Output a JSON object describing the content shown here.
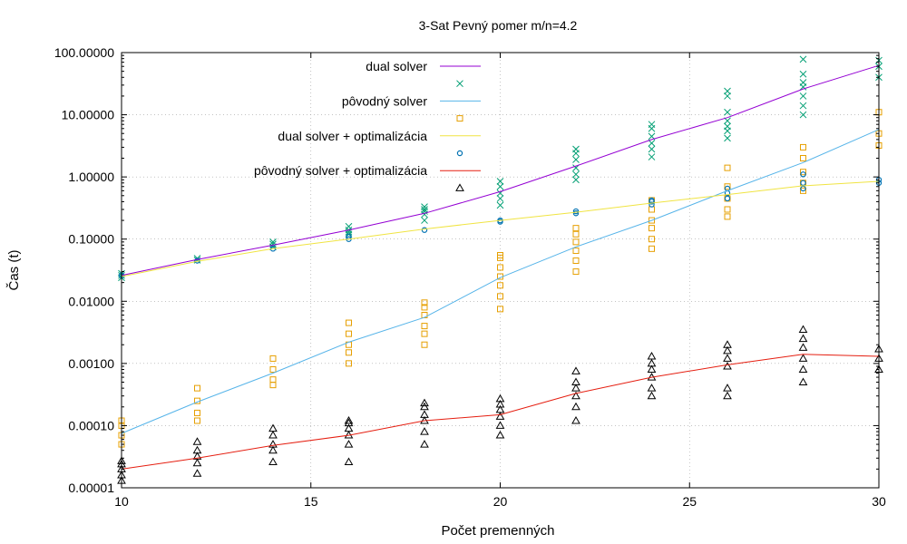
{
  "chart_data": {
    "type": "line",
    "title": "3-Sat Pevný pomer m/n=4.2",
    "xlabel": "Počet premenných",
    "ylabel": "Čas (t)",
    "xlim": [
      10,
      30
    ],
    "ylim": [
      1e-05,
      100
    ],
    "yscale": "log",
    "legend_placement": "top-left",
    "x_ticks": [
      {
        "value": 10,
        "label": "10"
      },
      {
        "value": 15,
        "label": "15"
      },
      {
        "value": 20,
        "label": "20"
      },
      {
        "value": 25,
        "label": "25"
      },
      {
        "value": 30,
        "label": "30"
      }
    ],
    "y_ticks": [
      {
        "value": 1e-05,
        "label": "0.00001"
      },
      {
        "value": 0.0001,
        "label": "0.00010"
      },
      {
        "value": 0.001,
        "label": "0.00100"
      },
      {
        "value": 0.01,
        "label": "0.01000"
      },
      {
        "value": 0.1,
        "label": "0.10000"
      },
      {
        "value": 1,
        "label": "1.00000"
      },
      {
        "value": 10,
        "label": "10.00000"
      },
      {
        "value": 100,
        "label": "100.00000"
      }
    ],
    "legend": [
      {
        "label": "dual solver",
        "kind": "line",
        "color": "#9400d3"
      },
      {
        "label": "",
        "kind": "cross",
        "color": "#009e73"
      },
      {
        "label": "pôvodný solver",
        "kind": "line",
        "color": "#56b4e9"
      },
      {
        "label": "",
        "kind": "square",
        "color": "#e69f00"
      },
      {
        "label": "dual solver + optimalizácia",
        "kind": "line",
        "color": "#f0e442"
      },
      {
        "label": "",
        "kind": "circle",
        "color": "#0072b2"
      },
      {
        "label": "pôvodný solver + optimalizácia",
        "kind": "line",
        "color": "#e51e10"
      },
      {
        "label": "",
        "kind": "triangle",
        "color": "#000000"
      }
    ],
    "series": [
      {
        "name": "dual solver",
        "kind": "line",
        "color": "#9400d3",
        "x": [
          10,
          12,
          14,
          16,
          18,
          20,
          22,
          24,
          26,
          28,
          30
        ],
        "y": [
          0.026,
          0.047,
          0.08,
          0.14,
          0.26,
          0.58,
          1.5,
          4.0,
          9.0,
          26,
          62
        ]
      },
      {
        "name": "pôvodný solver",
        "kind": "line",
        "color": "#56b4e9",
        "x": [
          10,
          12,
          14,
          16,
          18,
          20,
          22,
          24,
          26,
          28,
          30
        ],
        "y": [
          7.5e-05,
          0.00024,
          0.0007,
          0.0022,
          0.0055,
          0.024,
          0.075,
          0.2,
          0.6,
          1.7,
          5.8
        ]
      },
      {
        "name": "dual solver + optimalizácia",
        "kind": "line",
        "color": "#f0e442",
        "x": [
          10,
          12,
          14,
          16,
          18,
          20,
          22,
          24,
          26,
          28,
          30
        ],
        "y": [
          0.025,
          0.044,
          0.07,
          0.1,
          0.145,
          0.2,
          0.27,
          0.38,
          0.52,
          0.72,
          0.85
        ]
      },
      {
        "name": "pôvodný solver + optimalizácia",
        "kind": "line",
        "color": "#e51e10",
        "x": [
          10,
          12,
          14,
          16,
          18,
          20,
          22,
          24,
          26,
          28,
          30
        ],
        "y": [
          2e-05,
          3e-05,
          4.8e-05,
          7e-05,
          0.00012,
          0.00015,
          0.00033,
          0.0006,
          0.00095,
          0.0014,
          0.0013
        ]
      },
      {
        "kind": "cross",
        "color": "#009e73",
        "x": [
          10,
          10,
          10,
          12,
          12,
          14,
          14,
          14,
          16,
          16,
          16,
          16,
          18,
          18,
          18,
          18,
          18,
          20,
          20,
          20,
          20,
          20,
          22,
          22,
          22,
          22,
          22,
          22,
          24,
          24,
          24,
          24,
          24,
          24,
          26,
          26,
          26,
          26,
          26,
          26,
          26,
          28,
          28,
          28,
          28,
          28,
          28,
          28,
          30,
          30,
          30
        ],
        "y": [
          0.024,
          0.026,
          0.028,
          0.046,
          0.049,
          0.075,
          0.083,
          0.09,
          0.12,
          0.13,
          0.14,
          0.16,
          0.2,
          0.25,
          0.28,
          0.3,
          0.33,
          0.35,
          0.45,
          0.55,
          0.7,
          0.85,
          0.9,
          1.1,
          1.4,
          1.9,
          2.4,
          2.8,
          2.1,
          2.8,
          3.5,
          4.5,
          6.0,
          7.0,
          4.2,
          5.5,
          6.5,
          8.0,
          11,
          20,
          24,
          10,
          14,
          20,
          28,
          33,
          45,
          78,
          40,
          60,
          75
        ]
      },
      {
        "kind": "square",
        "color": "#e69f00",
        "x": [
          10,
          10,
          10,
          10,
          12,
          12,
          12,
          12,
          14,
          14,
          14,
          14,
          16,
          16,
          16,
          16,
          16,
          18,
          18,
          18,
          18,
          18,
          18,
          20,
          20,
          20,
          20,
          20,
          20,
          20,
          22,
          22,
          22,
          22,
          22,
          22,
          24,
          24,
          24,
          24,
          24,
          24,
          26,
          26,
          26,
          26,
          26,
          28,
          28,
          28,
          28,
          28,
          30,
          30,
          30
        ],
        "y": [
          5e-05,
          7e-05,
          0.0001,
          0.00012,
          0.00012,
          0.00016,
          0.00025,
          0.0004,
          0.00045,
          0.00055,
          0.0008,
          0.0012,
          0.001,
          0.0015,
          0.002,
          0.003,
          0.0045,
          0.002,
          0.003,
          0.004,
          0.006,
          0.008,
          0.0095,
          0.0075,
          0.012,
          0.018,
          0.025,
          0.035,
          0.05,
          0.055,
          0.03,
          0.045,
          0.065,
          0.09,
          0.12,
          0.15,
          0.07,
          0.1,
          0.15,
          0.2,
          0.3,
          0.42,
          0.23,
          0.3,
          0.45,
          0.7,
          1.4,
          0.6,
          0.8,
          1.2,
          2.0,
          3.0,
          3.2,
          5.0,
          11
        ]
      },
      {
        "kind": "circle",
        "color": "#0072b2",
        "x": [
          10,
          12,
          14,
          16,
          16,
          18,
          20,
          20,
          22,
          22,
          24,
          24,
          24,
          26,
          26,
          26,
          28,
          28,
          28,
          30,
          30
        ],
        "y": [
          0.026,
          0.045,
          0.07,
          0.1,
          0.11,
          0.14,
          0.19,
          0.2,
          0.26,
          0.28,
          0.36,
          0.4,
          0.42,
          0.45,
          0.55,
          0.65,
          0.65,
          0.8,
          1.1,
          0.8,
          0.9
        ]
      },
      {
        "kind": "triangle",
        "color": "#000000",
        "x": [
          10,
          10,
          10,
          10,
          10,
          12,
          12,
          12,
          12,
          12,
          14,
          14,
          14,
          14,
          14,
          16,
          16,
          16,
          16,
          16,
          16,
          18,
          18,
          18,
          18,
          18,
          18,
          20,
          20,
          20,
          20,
          20,
          20,
          22,
          22,
          22,
          22,
          22,
          22,
          24,
          24,
          24,
          24,
          24,
          24,
          26,
          26,
          26,
          26,
          26,
          26,
          28,
          28,
          28,
          28,
          28,
          28,
          30,
          30,
          30
        ],
        "y": [
          1.3e-05,
          1.6e-05,
          2e-05,
          2.4e-05,
          2.7e-05,
          1.7e-05,
          2.5e-05,
          3.2e-05,
          4e-05,
          5.5e-05,
          2.6e-05,
          4e-05,
          5e-05,
          7e-05,
          9e-05,
          2.6e-05,
          5e-05,
          7e-05,
          9e-05,
          0.00011,
          0.00012,
          5e-05,
          8e-05,
          0.00012,
          0.00015,
          0.0002,
          0.00023,
          7e-05,
          0.0001,
          0.00014,
          0.00018,
          0.00022,
          0.00027,
          0.00012,
          0.0002,
          0.0003,
          0.0004,
          0.0005,
          0.00075,
          0.0003,
          0.0004,
          0.0006,
          0.0008,
          0.001,
          0.0013,
          0.0003,
          0.0004,
          0.0009,
          0.0012,
          0.0016,
          0.002,
          0.0005,
          0.0008,
          0.0012,
          0.0018,
          0.0025,
          0.0035,
          0.0008,
          0.0012,
          0.0017
        ]
      }
    ]
  }
}
